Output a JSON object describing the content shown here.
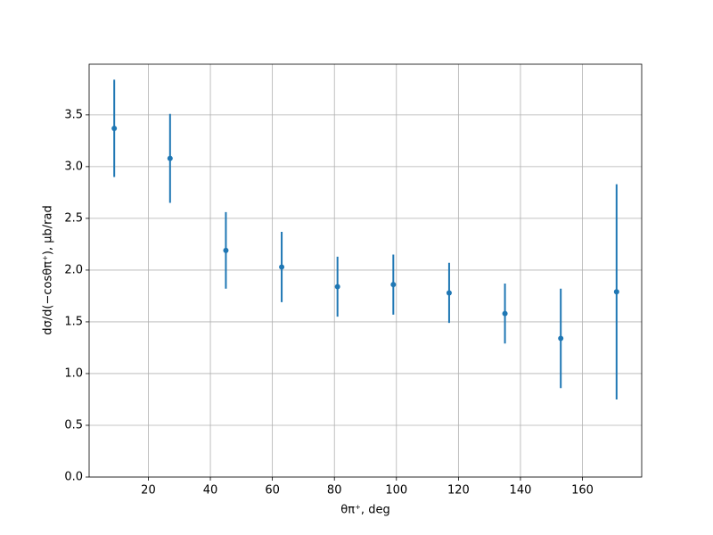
{
  "chart_data": {
    "type": "errorbar",
    "xlabel": "θπ⁺, deg",
    "ylabel": "dσ/d(−cosθπ⁺), μb/rad",
    "x": [
      9,
      27,
      45,
      63,
      81,
      99,
      117,
      135,
      153,
      171
    ],
    "series": [
      {
        "color": "#1f77b4",
        "values": [
          3.37,
          3.08,
          2.19,
          2.03,
          1.84,
          1.86,
          1.78,
          1.58,
          1.34,
          1.79
        ],
        "errors": [
          0.47,
          0.43,
          0.37,
          0.34,
          0.29,
          0.29,
          0.29,
          0.29,
          0.48,
          1.04
        ]
      }
    ],
    "xlim": [
      0.9,
      179.1
    ],
    "xticks": [
      20,
      40,
      60,
      80,
      100,
      120,
      140,
      160
    ],
    "ylim": [
      0,
      3.99
    ],
    "yticks": [
      {
        "value": 0,
        "label": "0.0"
      },
      0.5,
      {
        "value": 1,
        "label": "1.0"
      },
      1.5,
      {
        "value": 2,
        "label": "2.0"
      },
      2.5,
      {
        "value": 3,
        "label": "3.0"
      },
      3.5
    ],
    "grid": true
  }
}
